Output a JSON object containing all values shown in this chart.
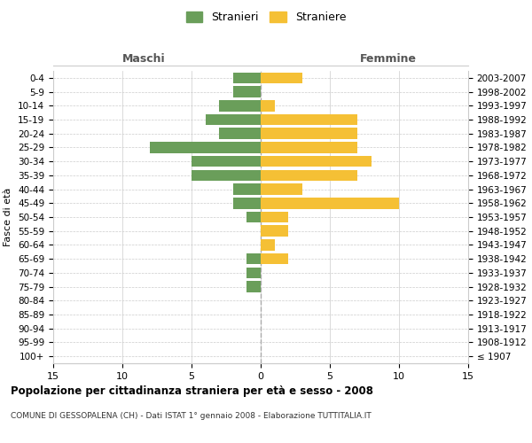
{
  "age_groups": [
    "100+",
    "95-99",
    "90-94",
    "85-89",
    "80-84",
    "75-79",
    "70-74",
    "65-69",
    "60-64",
    "55-59",
    "50-54",
    "45-49",
    "40-44",
    "35-39",
    "30-34",
    "25-29",
    "20-24",
    "15-19",
    "10-14",
    "5-9",
    "0-4"
  ],
  "birth_years": [
    "≤ 1907",
    "1908-1912",
    "1913-1917",
    "1918-1922",
    "1923-1927",
    "1928-1932",
    "1933-1937",
    "1938-1942",
    "1943-1947",
    "1948-1952",
    "1953-1957",
    "1958-1962",
    "1963-1967",
    "1968-1972",
    "1973-1977",
    "1978-1982",
    "1983-1987",
    "1988-1992",
    "1993-1997",
    "1998-2002",
    "2003-2007"
  ],
  "males": [
    0,
    0,
    0,
    0,
    0,
    1,
    1,
    1,
    0,
    0,
    1,
    2,
    2,
    5,
    5,
    8,
    3,
    4,
    3,
    2,
    2
  ],
  "females": [
    0,
    0,
    0,
    0,
    0,
    0,
    0,
    2,
    1,
    2,
    2,
    10,
    3,
    7,
    8,
    7,
    7,
    7,
    1,
    0,
    3
  ],
  "male_color": "#6a9e5a",
  "female_color": "#f5c035",
  "title": "Popolazione per cittadinanza straniera per età e sesso - 2008",
  "subtitle": "COMUNE DI GESSOPALENA (CH) - Dati ISTAT 1° gennaio 2008 - Elaborazione TUTTITALIA.IT",
  "xlabel_left": "Maschi",
  "xlabel_right": "Femmine",
  "ylabel_left": "Fasce di età",
  "legend_male": "Stranieri",
  "legend_female": "Straniere",
  "xlim": 15,
  "bg_color": "#ffffff",
  "grid_color": "#cccccc",
  "bar_height": 0.8
}
